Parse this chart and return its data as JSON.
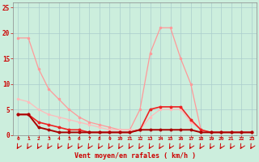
{
  "x": [
    0,
    1,
    2,
    3,
    4,
    5,
    6,
    7,
    8,
    9,
    10,
    11,
    12,
    13,
    14,
    15,
    16,
    17,
    18,
    19,
    20,
    21,
    22,
    23
  ],
  "series1_y": [
    19,
    19,
    13,
    9,
    7,
    5,
    3.5,
    2.5,
    2,
    1.5,
    1,
    1,
    5,
    16,
    21,
    21,
    15,
    10,
    1,
    0.5,
    0.5,
    0.5,
    0.5,
    0.5
  ],
  "series2_y": [
    7,
    6.5,
    5,
    4,
    3.5,
    3,
    2.5,
    2,
    1.5,
    1,
    1,
    1,
    1,
    3.5,
    5,
    5,
    5,
    2.5,
    1,
    0.5,
    0.5,
    0.5,
    0.5,
    0.5
  ],
  "series3_y": [
    4,
    4,
    2.5,
    2,
    1.5,
    1,
    1,
    0.5,
    0.5,
    0.5,
    0.5,
    0.5,
    1,
    5,
    5.5,
    5.5,
    5.5,
    3,
    1,
    0.5,
    0.5,
    0.5,
    0.5,
    0.5
  ],
  "series4_y": [
    4,
    4,
    1.5,
    1,
    0.5,
    0.5,
    0.5,
    0.5,
    0.5,
    0.5,
    0.5,
    0.5,
    1,
    1,
    1,
    1,
    1,
    1,
    0.5,
    0.5,
    0.5,
    0.5,
    0.5,
    0.5
  ],
  "color1": "#FF9999",
  "color2": "#FFBBBB",
  "color3": "#EE2222",
  "color4": "#AA0000",
  "xlabel": "Vent moyen/en rafales ( km/h )",
  "ylabel_ticks": [
    0,
    5,
    10,
    15,
    20,
    25
  ],
  "ylim": [
    0,
    26
  ],
  "xlim": [
    -0.5,
    23.5
  ],
  "bg_color": "#CCEEDD",
  "grid_color": "#AACCCC",
  "axis_color": "#CC0000",
  "tick_label_color": "#CC0000",
  "xlabel_color": "#CC0000",
  "arrow_color": "#CC0000",
  "figsize": [
    3.2,
    2.0
  ],
  "dpi": 100
}
